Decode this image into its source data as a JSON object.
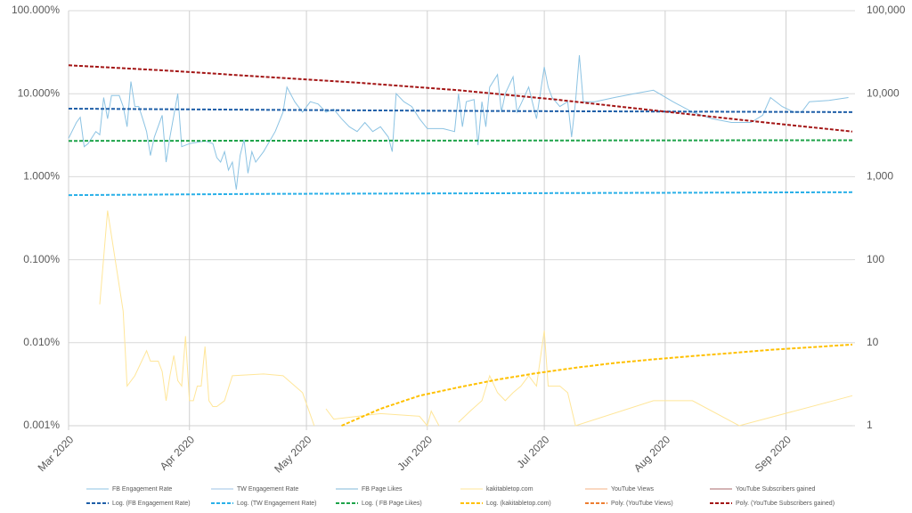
{
  "chart_data": {
    "type": "line",
    "log_scale": true,
    "grid": true,
    "legend": "bottom",
    "xlim": [
      0,
      201
    ],
    "xticks": [
      {
        "value": 0,
        "label": "Mar 2020"
      },
      {
        "value": 31,
        "label": "Apr 2020"
      },
      {
        "value": 61,
        "label": "May 2020"
      },
      {
        "value": 92,
        "label": "Jun 2020"
      },
      {
        "value": 122,
        "label": "Jul 2020"
      },
      {
        "value": 153,
        "label": "Aug 2020"
      },
      {
        "value": 184,
        "label": "Sep 2020"
      }
    ],
    "ylim": [
      0.001,
      100
    ],
    "yticks": [
      {
        "value": 0.001,
        "label": "0.001%"
      },
      {
        "value": 0.01,
        "label": "0.010%"
      },
      {
        "value": 0.1,
        "label": "0.100%"
      },
      {
        "value": 1,
        "label": "1.000%"
      },
      {
        "value": 10,
        "label": "10.000%"
      },
      {
        "value": 100,
        "label": "100.000%"
      }
    ],
    "y2lim": [
      1,
      100000
    ],
    "y2ticks": [
      1,
      10,
      100,
      {
        "value": 1000,
        "label": "1,000"
      },
      {
        "value": 10000,
        "label": "10,000"
      },
      {
        "value": 100000,
        "label": "100,000"
      }
    ],
    "series": [
      {
        "name": "FB Engagement Rate",
        "color": "#8cc3e3",
        "style": "solid",
        "x": [
          0,
          2,
          3,
          4,
          5,
          7,
          8,
          9,
          10,
          11,
          13,
          14,
          15,
          16,
          17,
          18,
          19,
          20,
          21,
          22,
          24,
          25,
          26,
          28,
          29,
          31,
          35,
          37,
          38,
          39,
          40,
          41,
          42,
          43,
          44,
          45,
          46,
          47,
          48,
          50,
          53,
          55,
          56,
          58,
          60,
          62,
          64,
          66,
          68,
          70,
          72,
          74,
          76,
          78,
          80,
          82,
          83,
          84,
          86,
          88,
          90,
          92,
          96,
          99,
          100,
          101,
          102,
          104,
          105,
          106,
          107,
          108,
          110,
          111,
          112,
          114,
          115,
          116,
          118,
          120,
          122,
          123,
          124,
          126,
          128,
          129,
          130,
          131,
          132,
          135,
          140,
          145,
          150,
          155,
          160,
          165,
          170,
          175,
          178,
          180,
          183,
          186,
          188,
          190,
          195,
          200
        ],
        "values": [
          2.9,
          4.5,
          5.2,
          2.3,
          2.5,
          3.5,
          3.2,
          9,
          5,
          9.5,
          9.5,
          7,
          4,
          14,
          7,
          7,
          5,
          3.5,
          1.8,
          3,
          5.5,
          1.5,
          3,
          10,
          2.3,
          2.5,
          2.7,
          2.5,
          1.7,
          1.5,
          2,
          1.2,
          1.5,
          0.7,
          1.8,
          2.8,
          1.1,
          2,
          1.5,
          2,
          3.5,
          6,
          12,
          8,
          6,
          8,
          7.5,
          6,
          6.5,
          5,
          4,
          3.5,
          4.5,
          3.5,
          4,
          3,
          2,
          10,
          8,
          7,
          5,
          3.8,
          3.8,
          3.5,
          10,
          4,
          8,
          8.5,
          2.4,
          8,
          4,
          12,
          17,
          6,
          10,
          16,
          6,
          7.5,
          12,
          5,
          21,
          12,
          9,
          7,
          8,
          3,
          8,
          29,
          8,
          8,
          9,
          10,
          11,
          8,
          6,
          5,
          4.5,
          4.5,
          5.5,
          9,
          7,
          6,
          6,
          8,
          8.3,
          9
        ]
      },
      {
        "name": "TW Engagement Rate",
        "color": "#9dc3e6",
        "style": "solid",
        "x": [],
        "values": []
      },
      {
        "name": "FB Page Likes",
        "color": "#7fb8d8",
        "style": "solid",
        "axis": "y2",
        "x": [],
        "values": []
      },
      {
        "name": "kakitabletop.com",
        "color": "#ffe699",
        "style": "solid",
        "axis": "y2",
        "x": [
          8,
          10,
          14,
          15,
          17,
          20,
          21,
          23,
          24,
          25,
          26,
          27,
          28,
          29,
          30,
          31,
          32,
          33,
          34,
          35,
          36,
          37,
          38,
          40,
          42,
          50,
          55,
          60,
          63,
          64,
          66,
          68,
          80,
          90,
          92,
          93,
          95,
          96,
          100,
          103,
          106,
          108,
          110,
          112,
          114,
          116,
          118,
          120,
          122,
          123,
          126,
          128,
          130,
          150,
          160,
          172,
          201
        ],
        "values": [
          29,
          390,
          24,
          3,
          4,
          8,
          6,
          6,
          4.5,
          2,
          4,
          7,
          3.5,
          3,
          12,
          2,
          2,
          3,
          3,
          9,
          2,
          1.7,
          1.7,
          2,
          4,
          4.2,
          4,
          2.5,
          1,
          null,
          1.6,
          1.2,
          1.4,
          1.3,
          1,
          1.5,
          1,
          null,
          1.1,
          1.5,
          2,
          4,
          2.5,
          2,
          2.5,
          3,
          4,
          3,
          14,
          3,
          3,
          2.5,
          1,
          2,
          2,
          1,
          2.3
        ]
      },
      {
        "name": "YouTube Views",
        "color": "#f4b183",
        "style": "solid",
        "axis": "y2",
        "x": [],
        "values": []
      },
      {
        "name": "YouTube Subscribers gained",
        "color": "#a9686b",
        "style": "solid",
        "axis": "y2",
        "x": [],
        "values": []
      },
      {
        "name": "Log. (FB Engagement Rate)",
        "color": "#1f5fa8",
        "style": "dashed",
        "x": [
          0,
          50,
          100,
          150,
          201
        ],
        "values": [
          6.6,
          6.4,
          6.2,
          6.1,
          6.0
        ]
      },
      {
        "name": "Log. (TW Engagement Rate)",
        "color": "#2ab0e8",
        "style": "dashed",
        "x": [
          0,
          50,
          100,
          150,
          201
        ],
        "values": [
          0.6,
          0.62,
          0.63,
          0.64,
          0.65
        ]
      },
      {
        "name": "Log. ( FB Page Likes)",
        "color": "#1ea34a",
        "style": "dashed",
        "axis": "y2",
        "x": [
          0,
          50,
          100,
          150,
          201
        ],
        "values": [
          2700,
          2710,
          2720,
          2740,
          2750
        ]
      },
      {
        "name": "Log. (kakitabletop.com)",
        "color": "#ffc000",
        "style": "dashed",
        "axis": "y2",
        "x": [
          70,
          80,
          90,
          100,
          110,
          120,
          130,
          140,
          150,
          160,
          170,
          180,
          190,
          201
        ],
        "values": [
          1,
          1.6,
          2.3,
          2.9,
          3.6,
          4.3,
          5,
          5.7,
          6.3,
          6.9,
          7.5,
          8.2,
          8.8,
          9.5
        ]
      },
      {
        "name": "Poly. (YouTube Views)",
        "color": "#ed7d31",
        "style": "dashed",
        "axis": "y2",
        "x": [],
        "values": []
      },
      {
        "name": "Poly. (YouTube Subscribers gained)",
        "color": "#a31515",
        "style": "dashed",
        "axis": "y2",
        "x": [
          0,
          25,
          50,
          75,
          100,
          125,
          150,
          175,
          201
        ],
        "values": [
          22000,
          19000,
          16000,
          13500,
          11000,
          8500,
          6300,
          4700,
          3500
        ]
      }
    ]
  }
}
